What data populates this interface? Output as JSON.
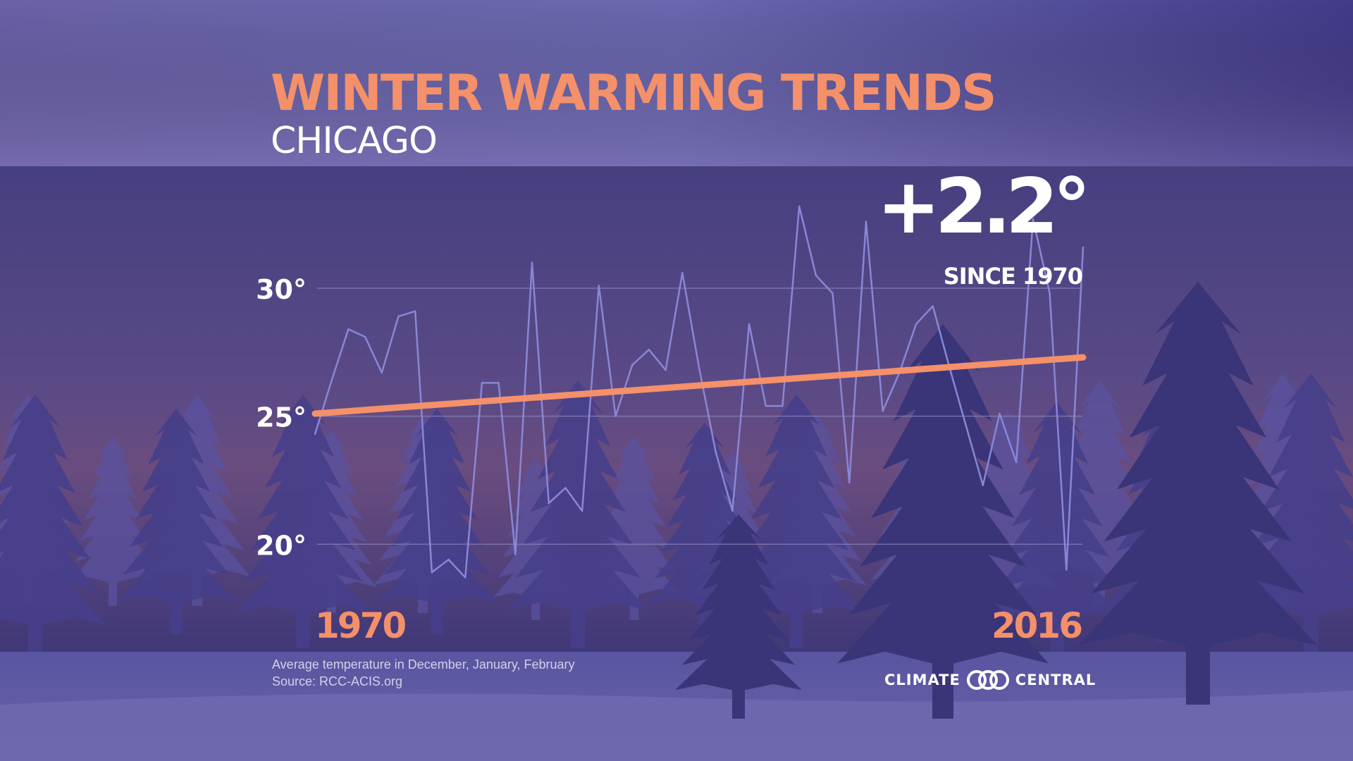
{
  "header": {
    "title": "WINTER WARMING TRENDS",
    "subtitle": "CHICAGO"
  },
  "callout": {
    "value": "+2.2°",
    "label": "SINCE 1970"
  },
  "footer": {
    "note_line1": "Average temperature in December, January, February",
    "note_line2": "Source: RCC-ACIS.org",
    "logo_left": "CLIMATE",
    "logo_right": "CENTRAL"
  },
  "colors": {
    "accent": "#f4906a",
    "data_line": "#8a86d6",
    "grid": "#8e88c0",
    "text_light": "#ffffff"
  },
  "chart_data": {
    "type": "line",
    "title": "WINTER WARMING TRENDS",
    "subtitle": "CHICAGO",
    "xlabel": "",
    "ylabel": "",
    "xlim": [
      1970,
      2016
    ],
    "ylim": [
      18,
      33
    ],
    "x_tick_labels": [
      "1970",
      "2016"
    ],
    "y_ticks": [
      20,
      25,
      30
    ],
    "y_tick_labels": [
      "20°",
      "25°",
      "30°"
    ],
    "grid": true,
    "series": [
      {
        "role": "observed",
        "x": [
          1970,
          1971,
          1972,
          1973,
          1974,
          1975,
          1976,
          1977,
          1978,
          1979,
          1980,
          1981,
          1982,
          1983,
          1984,
          1985,
          1986,
          1987,
          1988,
          1989,
          1990,
          1991,
          1992,
          1993,
          1994,
          1995,
          1996,
          1997,
          1998,
          1999,
          2000,
          2001,
          2002,
          2003,
          2004,
          2005,
          2006,
          2007,
          2008,
          2009,
          2010,
          2011,
          2012,
          2013,
          2014,
          2015,
          2016
        ],
        "values": [
          24.3,
          26.4,
          28.4,
          28.1,
          26.7,
          28.9,
          29.1,
          18.9,
          19.4,
          18.7,
          26.3,
          26.3,
          19.6,
          31.0,
          21.6,
          22.2,
          21.3,
          30.1,
          25.0,
          27.0,
          27.6,
          26.8,
          30.6,
          26.9,
          23.6,
          21.3,
          28.6,
          25.4,
          25.4,
          33.2,
          30.5,
          29.8,
          22.4,
          32.6,
          25.2,
          26.7,
          28.6,
          29.3,
          26.9,
          24.6,
          22.3,
          25.1,
          23.2,
          32.7,
          29.8,
          19.0,
          31.6
        ]
      },
      {
        "role": "trend",
        "x": [
          1970,
          2016
        ],
        "values": [
          25.1,
          27.3
        ]
      }
    ],
    "annotations": [
      "+2.2°",
      "SINCE 1970"
    ]
  }
}
